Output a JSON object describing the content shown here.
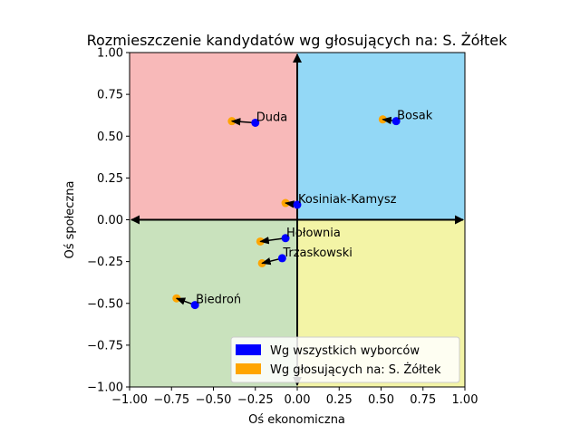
{
  "chart_data": {
    "type": "scatter",
    "title": "Rozmieszczenie kandydatów wg głosujących na: S. Żółtek",
    "xlabel": "Oś ekonomiczna",
    "ylabel": "Oś społeczna",
    "xlim": [
      -1.0,
      1.0
    ],
    "ylim": [
      -1.0,
      1.0
    ],
    "xticks": [
      "−1.00",
      "−0.75",
      "−0.50",
      "−0.25",
      "0.00",
      "0.25",
      "0.50",
      "0.75",
      "1.00"
    ],
    "yticks": [
      "−1.00",
      "−0.75",
      "−0.50",
      "−0.25",
      "0.00",
      "0.25",
      "0.50",
      "0.75",
      "1.00"
    ],
    "grid": false,
    "quadrant_colors": {
      "top_left": "#f8b9b9",
      "top_right": "#93d8f6",
      "bottom_left": "#c9e2bd",
      "bottom_right": "#f3f4a6"
    },
    "series": [
      {
        "name": "Wg wszystkich wyborców",
        "color": "#0000ff"
      },
      {
        "name": "Wg głosujących na: S. Żółtek",
        "color": "#ffa500"
      }
    ],
    "candidates": [
      {
        "name": "Duda",
        "all": [
          -0.25,
          0.58
        ],
        "subset": [
          -0.39,
          0.59
        ]
      },
      {
        "name": "Bosak",
        "all": [
          0.59,
          0.59
        ],
        "subset": [
          0.51,
          0.6
        ]
      },
      {
        "name": "Kosiniak-Kamysz",
        "all": [
          0.0,
          0.09
        ],
        "subset": [
          -0.07,
          0.1
        ]
      },
      {
        "name": "Hołownia",
        "all": [
          -0.07,
          -0.11
        ],
        "subset": [
          -0.22,
          -0.13
        ]
      },
      {
        "name": "Trzaskowski",
        "all": [
          -0.09,
          -0.23
        ],
        "subset": [
          -0.21,
          -0.26
        ]
      },
      {
        "name": "Biedroń",
        "all": [
          -0.61,
          -0.51
        ],
        "subset": [
          -0.72,
          -0.47
        ]
      }
    ],
    "legend": {
      "placement": "lower-right",
      "entries": [
        "Wg wszystkich wyborców",
        "Wg głosujących na: S. Żółtek"
      ]
    }
  }
}
